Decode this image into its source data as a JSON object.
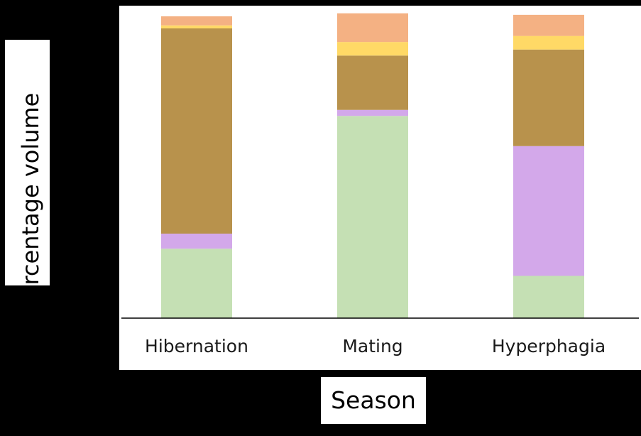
{
  "chart_data": {
    "type": "bar",
    "stacked": true,
    "categories": [
      "Hibernation",
      "Mating",
      "Hyperphagia"
    ],
    "xlabel": "Season",
    "ylabel": "Percentage volume",
    "ylim": [
      0,
      100
    ],
    "grid": false,
    "legend": "none",
    "series": [
      {
        "color": "#c5e0b4",
        "values": [
          23,
          67,
          14
        ]
      },
      {
        "color": "#d3a8ea",
        "values": [
          5,
          2,
          43
        ]
      },
      {
        "color": "#b8924c",
        "values": [
          68,
          18,
          32
        ]
      },
      {
        "color": "#ffd966",
        "values": [
          1,
          4.5,
          4.5
        ]
      },
      {
        "color": "#f4b183",
        "values": [
          3,
          9.5,
          7
        ]
      }
    ]
  }
}
